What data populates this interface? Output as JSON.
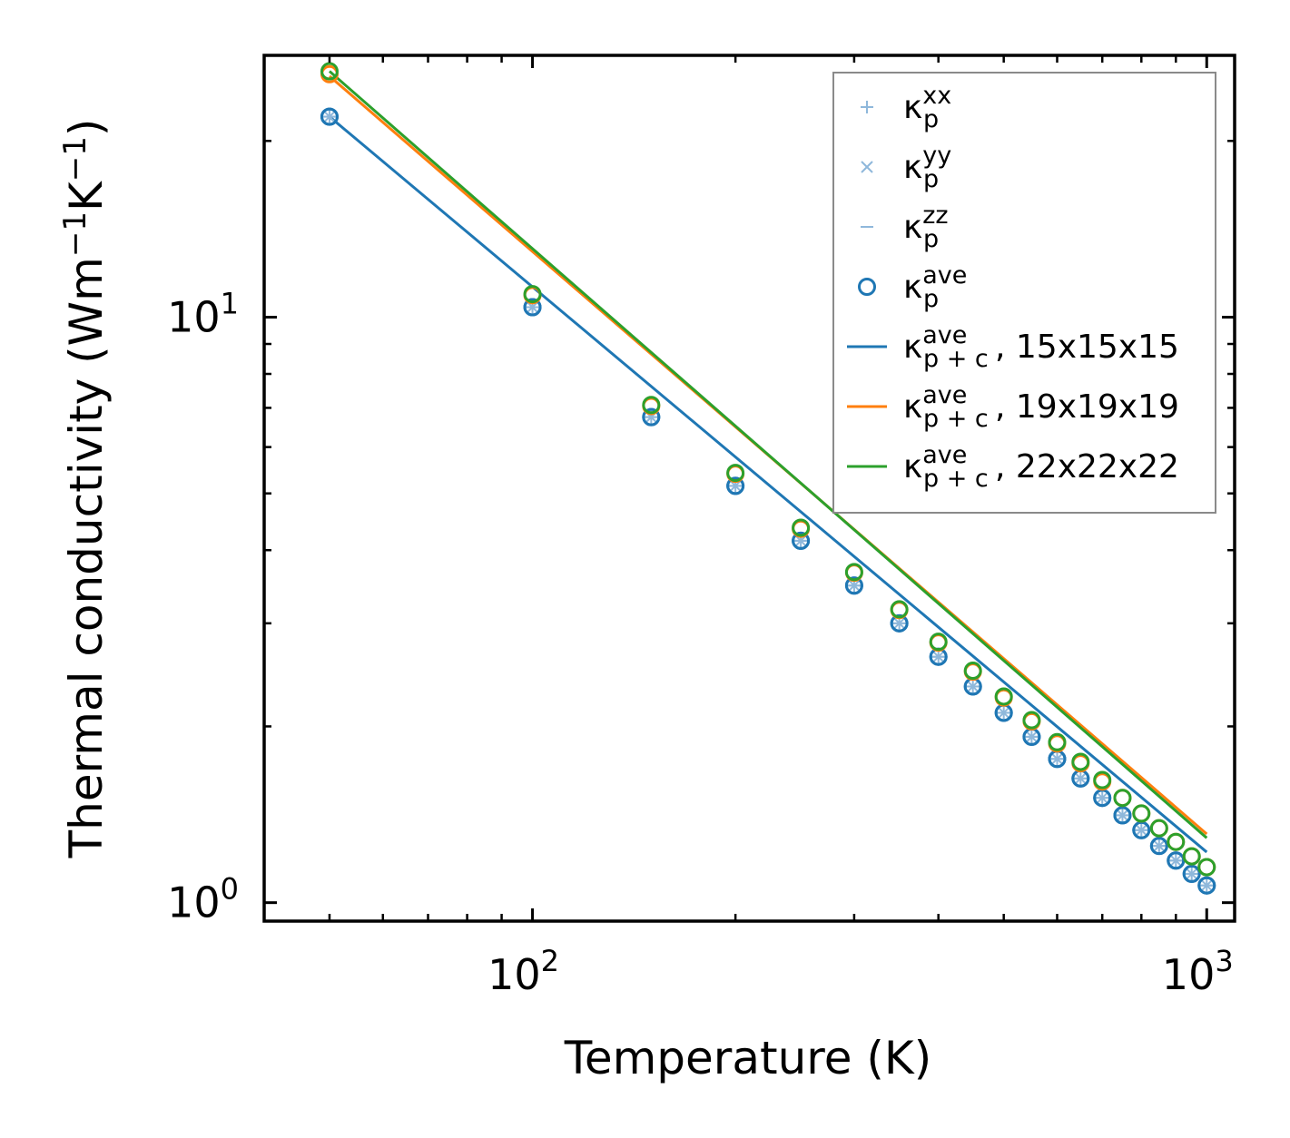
{
  "chart_data": {
    "type": "line",
    "scale": {
      "x": "log",
      "y": "log"
    },
    "xlabel": "Temperature (K)",
    "ylabel": "Thermal conductivity (Wm",
    "ylabel_sup1": "−1",
    "ylabel_mid": "K",
    "ylabel_sup2": "−1",
    "ylabel_end": ")",
    "xlim": [
      40,
      1100
    ],
    "ylim": [
      0.93,
      28
    ],
    "x_ticks": [
      {
        "value": 100,
        "base": "10",
        "exp": "2"
      },
      {
        "value": 1000,
        "base": "10",
        "exp": "3"
      }
    ],
    "y_ticks": [
      {
        "value": 1,
        "base": "10",
        "exp": "0"
      },
      {
        "value": 10,
        "base": "10",
        "exp": "1"
      }
    ],
    "x": [
      50,
      100,
      150,
      200,
      250,
      300,
      350,
      400,
      450,
      500,
      550,
      600,
      650,
      700,
      750,
      800,
      850,
      900,
      950,
      1000
    ],
    "series": [
      {
        "name": "κp^xx",
        "kind": "marker",
        "marker": "plus",
        "color": "#8fb8db",
        "values": [
          22.0,
          10.4,
          6.75,
          5.15,
          4.15,
          3.48,
          3.0,
          2.63,
          2.34,
          2.11,
          1.92,
          1.76,
          1.63,
          1.51,
          1.41,
          1.33,
          1.25,
          1.18,
          1.12,
          1.07
        ]
      },
      {
        "name": "κp^yy",
        "kind": "marker",
        "marker": "x",
        "color": "#8fb8db",
        "values": [
          22.0,
          10.4,
          6.75,
          5.15,
          4.15,
          3.48,
          3.0,
          2.63,
          2.34,
          2.11,
          1.92,
          1.76,
          1.63,
          1.51,
          1.41,
          1.33,
          1.25,
          1.18,
          1.12,
          1.07
        ]
      },
      {
        "name": "κp^zz",
        "kind": "marker",
        "marker": "dash",
        "color": "#8fb8db",
        "values": [
          22.0,
          10.4,
          6.75,
          5.15,
          4.15,
          3.48,
          3.0,
          2.63,
          2.34,
          2.11,
          1.92,
          1.76,
          1.63,
          1.51,
          1.41,
          1.33,
          1.25,
          1.18,
          1.12,
          1.07
        ]
      },
      {
        "name": "κp^ave",
        "kind": "marker",
        "marker": "circle",
        "color": "#1f77b4",
        "values": [
          22.0,
          10.4,
          6.75,
          5.15,
          4.15,
          3.48,
          3.0,
          2.63,
          2.34,
          2.11,
          1.92,
          1.76,
          1.63,
          1.51,
          1.41,
          1.33,
          1.25,
          1.18,
          1.12,
          1.07
        ]
      },
      {
        "name": "κp+c^ave, 15x15x15",
        "kind": "line",
        "color": "#1f77b4",
        "label_suffix": ", 15x15x15",
        "x": [
          50,
          1000
        ],
        "values": [
          22.0,
          1.22
        ],
        "markers": {
          "color": "#1f77b4",
          "values": [
            22.0,
            10.4,
            6.75,
            5.15,
            4.15,
            3.48,
            3.0,
            2.63,
            2.34,
            2.11,
            1.92,
            1.76,
            1.63,
            1.51,
            1.41,
            1.33,
            1.25,
            1.18,
            1.12,
            1.07
          ]
        }
      },
      {
        "name": "κp+c^ave, 19x19x19",
        "kind": "line",
        "color": "#ff7f0e",
        "label_suffix": ", 19x19x19",
        "x": [
          50,
          1000
        ],
        "values": [
          25.8,
          1.31
        ],
        "markers": {
          "color": "#ff7f0e",
          "values": [
            26.0,
            10.9,
            7.05,
            5.4,
            4.35,
            3.66,
            3.16,
            2.78,
            2.48,
            2.24,
            2.04,
            1.87,
            1.73,
            1.61,
            1.51,
            1.42,
            1.34,
            1.27,
            1.2,
            1.15
          ]
        }
      },
      {
        "name": "κp+c^ave, 22x22x22",
        "kind": "line",
        "color": "#2ca02c",
        "label_suffix": ", 22x22x22",
        "x": [
          50,
          1000
        ],
        "values": [
          26.3,
          1.29
        ],
        "markers": {
          "color": "#2ca02c",
          "values": [
            26.3,
            10.95,
            7.08,
            5.42,
            4.37,
            3.67,
            3.17,
            2.79,
            2.49,
            2.25,
            2.05,
            1.88,
            1.74,
            1.62,
            1.51,
            1.42,
            1.34,
            1.27,
            1.2,
            1.15
          ]
        }
      }
    ],
    "legend": {
      "position": "top-right",
      "kappa": "κ",
      "items": [
        {
          "sub": "p",
          "sup": "xx",
          "suffix": ""
        },
        {
          "sub": "p",
          "sup": "yy",
          "suffix": ""
        },
        {
          "sub": "p",
          "sup": "zz",
          "suffix": ""
        },
        {
          "sub": "p",
          "sup": "ave",
          "suffix": ""
        },
        {
          "sub": "p + c",
          "sup": "ave",
          "suffix": ", 15x15x15"
        },
        {
          "sub": "p + c",
          "sup": "ave",
          "suffix": ", 19x19x19"
        },
        {
          "sub": "p + c",
          "sup": "ave",
          "suffix": ", 22x22x22"
        }
      ]
    }
  }
}
